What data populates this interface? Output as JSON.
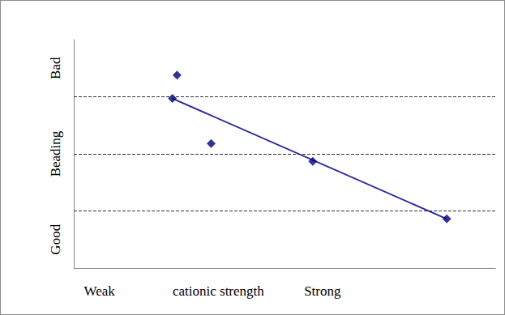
{
  "chart_data": {
    "type": "scatter",
    "xlim": [
      0,
      10
    ],
    "xticks": [
      {
        "value": 0.61,
        "label": "Weak"
      },
      {
        "value": 3.43,
        "label": "cationic strength"
      },
      {
        "value": 5.9,
        "label": "Strong"
      }
    ],
    "ylim": [
      0,
      4
    ],
    "yticks": [
      {
        "value": 0.5,
        "label": "Good"
      },
      {
        "value": 2,
        "label": "Beading"
      },
      {
        "value": 3.5,
        "label": "Bad"
      }
    ],
    "hlines": [
      1,
      2,
      3
    ],
    "series": [
      {
        "type": "scatter",
        "marker": "diamond",
        "color": "#000080",
        "x": [
          2.45,
          2.34,
          3.26,
          5.67,
          8.85
        ],
        "values": [
          3.38,
          2.97,
          2.18,
          1.87,
          0.86
        ]
      },
      {
        "type": "line",
        "color": "#2b2b9e",
        "x": [
          2.34,
          8.85
        ],
        "values": [
          2.97,
          0.86
        ]
      }
    ]
  }
}
